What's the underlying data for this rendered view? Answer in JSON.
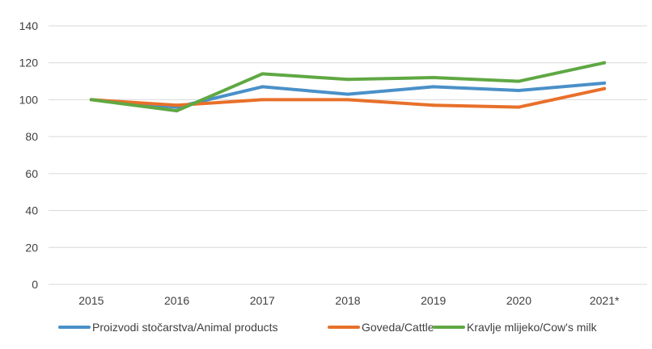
{
  "chart_data": {
    "type": "line",
    "title": "",
    "xlabel": "",
    "ylabel": "",
    "categories": [
      "2015",
      "2016",
      "2017",
      "2018",
      "2019",
      "2020",
      "2021*"
    ],
    "ylim": [
      0,
      140
    ],
    "yticks": [
      0,
      20,
      40,
      60,
      80,
      100,
      120,
      140
    ],
    "grid": "horizontal",
    "legend_position": "bottom",
    "series": [
      {
        "name": "Proizvodi stočarstva/Animal products",
        "color": "#4a90c8",
        "values": [
          100,
          96,
          107,
          103,
          107,
          105,
          109
        ]
      },
      {
        "name": "Goveda/Cattle",
        "color": "#e8702a",
        "values": [
          100,
          97,
          100,
          100,
          97,
          96,
          106
        ]
      },
      {
        "name": "Kravlje mlijeko/Cow's milk",
        "color": "#5fa843",
        "values": [
          100,
          94,
          114,
          111,
          112,
          110,
          120
        ]
      }
    ]
  }
}
